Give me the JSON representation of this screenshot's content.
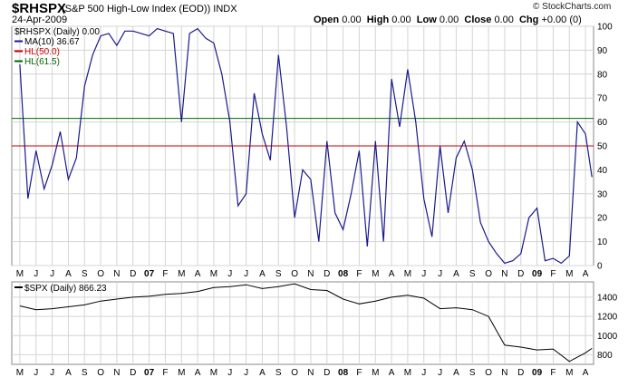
{
  "header": {
    "symbol": "$RHSPX",
    "subtitle": "(S&P 500 High-Low Index (EOD))  INDX",
    "date": "24-Apr-2009",
    "open_label": "Open",
    "open_value": "0.00",
    "high_label": "High",
    "high_value": "0.00",
    "low_label": "Low",
    "low_value": "0.00",
    "close_label": "Close",
    "close_value": "0.00",
    "chg_label": "Chg",
    "chg_value": "+0.00 (0)",
    "brand": "© StockCharts.com"
  },
  "colors": {
    "line_main": "#1a1a8c",
    "line_50": "#cc0000",
    "line_61": "#006600",
    "grid": "#d4d4d4",
    "spx": "#000000"
  },
  "chart_data": [
    {
      "type": "line",
      "legend": [
        "$RHSPX (Daily) 0.00",
        "MA(10) 36.67",
        "HL(50.0)",
        "HL(61.5)"
      ],
      "ylim": [
        0,
        100
      ],
      "yticks": [
        0,
        10,
        20,
        30,
        40,
        50,
        60,
        70,
        80,
        90,
        100
      ],
      "hlines": [
        50.0,
        61.5
      ],
      "x_ticks": [
        "M",
        "J",
        "J",
        "A",
        "S",
        "O",
        "N",
        "D",
        "07",
        "F",
        "M",
        "A",
        "M",
        "J",
        "J",
        "A",
        "S",
        "O",
        "N",
        "D",
        "08",
        "F",
        "M",
        "A",
        "M",
        "J",
        "J",
        "A",
        "S",
        "O",
        "N",
        "D",
        "09",
        "F",
        "M",
        "A"
      ],
      "series": [
        {
          "name": "MA(10)",
          "x": [
            0,
            0.5,
            1,
            1.5,
            2,
            2.5,
            3,
            3.5,
            4,
            4.5,
            5,
            5.5,
            6,
            6.5,
            7,
            7.5,
            8,
            8.5,
            9,
            9.5,
            10,
            10.5,
            11,
            11.5,
            12,
            12.5,
            13,
            13.5,
            14,
            14.5,
            15,
            15.5,
            16,
            16.5,
            17,
            17.5,
            18,
            18.5,
            19,
            19.5,
            20,
            20.5,
            21,
            21.5,
            22,
            22.5,
            23,
            23.5,
            24,
            24.5,
            25,
            25.5,
            26,
            26.5,
            27,
            27.5,
            28,
            28.5,
            29,
            29.5,
            30,
            30.5,
            31,
            31.5,
            32,
            32.5,
            33,
            33.5,
            34,
            34.5,
            35,
            35.4
          ],
          "values": [
            84,
            28,
            48,
            32,
            42,
            56,
            36,
            45,
            75,
            88,
            96,
            97,
            92,
            98,
            98,
            97,
            96,
            99,
            98,
            97,
            60,
            97,
            99,
            95,
            93,
            80,
            60,
            25,
            30,
            72,
            55,
            44,
            88,
            58,
            20,
            40,
            36,
            10,
            52,
            22,
            15,
            30,
            48,
            8,
            52,
            10,
            78,
            58,
            82,
            60,
            28,
            12,
            50,
            22,
            45,
            52,
            40,
            18,
            10,
            5,
            1,
            2,
            5,
            20,
            24,
            2,
            3,
            1,
            4,
            60,
            55,
            37
          ]
        },
        {
          "name": "$SPX (Daily) 866.23",
          "x": [
            0,
            1,
            2,
            3,
            4,
            5,
            6,
            7,
            8,
            9,
            10,
            11,
            12,
            13,
            14,
            15,
            16,
            17,
            18,
            19,
            20,
            21,
            22,
            23,
            24,
            25,
            26,
            27,
            28,
            29,
            29.5,
            30,
            31,
            32,
            33,
            34,
            35,
            35.4
          ],
          "values": [
            1310,
            1270,
            1280,
            1300,
            1320,
            1360,
            1380,
            1400,
            1410,
            1430,
            1440,
            1460,
            1500,
            1510,
            1530,
            1490,
            1510,
            1540,
            1480,
            1470,
            1380,
            1330,
            1360,
            1400,
            1420,
            1390,
            1280,
            1290,
            1270,
            1200,
            1050,
            900,
            880,
            850,
            860,
            730,
            820,
            866
          ]
        }
      ]
    },
    {
      "type": "line",
      "legend": [
        "$SPX (Daily) 866.23"
      ],
      "ylim": [
        700,
        1560
      ],
      "yticks": [
        800,
        1000,
        1200,
        1400
      ],
      "x_ticks": [
        "M",
        "J",
        "J",
        "A",
        "S",
        "O",
        "N",
        "D",
        "07",
        "F",
        "M",
        "A",
        "M",
        "J",
        "J",
        "A",
        "S",
        "O",
        "N",
        "D",
        "08",
        "F",
        "M",
        "A",
        "M",
        "J",
        "J",
        "A",
        "S",
        "O",
        "N",
        "D",
        "09",
        "F",
        "M",
        "A"
      ]
    }
  ]
}
